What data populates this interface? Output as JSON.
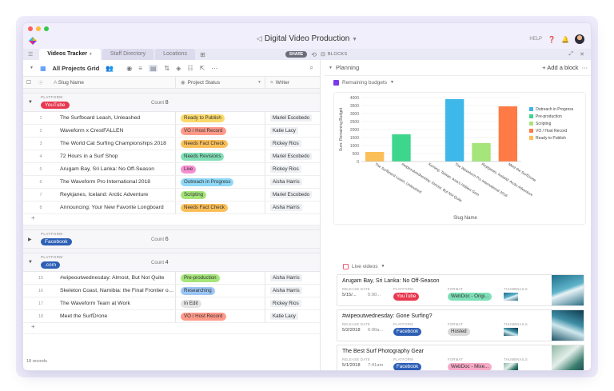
{
  "window": {
    "title": "Digital Video Production",
    "help_label": "HELP"
  },
  "tabs": [
    {
      "label": "Videos Tracker"
    },
    {
      "label": "Staff Directory"
    },
    {
      "label": "Locations"
    }
  ],
  "share_label": "SHARE",
  "blocks_label": "BLOCKS",
  "toolbar": {
    "view_name": "All Projects Grid"
  },
  "columns": {
    "name": "Slug Name",
    "status": "Project Status",
    "writer": "Writer"
  },
  "groups": [
    {
      "label": "PLATFORM",
      "name": "YouTube",
      "color": "#e8384f",
      "count_label": "Count",
      "count": "8",
      "rows": [
        {
          "n": "1",
          "name": "The Surfboard Leash, Unleashed",
          "status": "Ready to Publish",
          "status_color": "#fbd96a",
          "writer": "Mariel Escobedo"
        },
        {
          "n": "2",
          "name": "Waveform x CrestFALLEN",
          "status": "VO / Host Record",
          "status_color": "#ff9a8a",
          "writer": "Katie Lacy"
        },
        {
          "n": "3",
          "name": "The World Cat Surfing Championships 2018",
          "status": "Needs Fact Check",
          "status_color": "#fbbf5a",
          "writer": "Rickey Rios"
        },
        {
          "n": "4",
          "name": "72 Hours in a Surf Shop",
          "status": "Needs Revisions",
          "status_color": "#82dfb8",
          "writer": "Mariel Escobedo"
        },
        {
          "n": "5",
          "name": "Arugam Bay, Sri Lanka: No Off-Season",
          "status": "Live",
          "status_color": "#f78fd1",
          "writer": "Rickey Rios"
        },
        {
          "n": "6",
          "name": "The Waveform Pro International 2018",
          "status": "Outreach in Progress",
          "status_color": "#8fd8f7",
          "writer": "Aisha Harris"
        },
        {
          "n": "7",
          "name": "Reykjanes, Iceland: Arctic Adventure",
          "status": "Scripting",
          "status_color": "#a5e57a",
          "writer": "Mariel Escobedo"
        },
        {
          "n": "8",
          "name": "Announcing: Your New Favorite Longboard",
          "status": "Needs Fact Check",
          "status_color": "#fbbf5a",
          "writer": "Aisha Harris"
        }
      ]
    },
    {
      "label": "PLATFORM",
      "name": "Facebook",
      "color": "#2d5fb5",
      "count_label": "Count",
      "count": "6",
      "rows": []
    },
    {
      "label": "PLATFORM",
      "name": ".com",
      "color": "#2d5fb5",
      "count_label": "Count",
      "count": "4",
      "rows": [
        {
          "n": "15",
          "name": "#wipeoutwednesday: Almost, But Not Quite",
          "status": "Pre-production",
          "status_color": "#a5e57a",
          "writer": "Aisha Harris"
        },
        {
          "n": "16",
          "name": "Skeleton Coast, Namibia: the Final Frontier of ...",
          "status": "Researching",
          "status_color": "#9cc6f5",
          "writer": "Aisha Harris"
        },
        {
          "n": "17",
          "name": "The Waveform Team at Work",
          "status": "In Edit",
          "status_color": "#e4e4e4",
          "writer": "Rickey Rios"
        },
        {
          "n": "18",
          "name": "Meet the SurfDrone",
          "status": "VO / Host Record",
          "status_color": "#ff9a8a",
          "writer": "Katie Lacy"
        }
      ]
    }
  ],
  "records_label": "18 records",
  "right": {
    "planning_label": "Planning",
    "add_block_label": "+ Add a block",
    "chart_block_title": "Remaining budgets",
    "live_block_title": "Live videos"
  },
  "chart_data": {
    "type": "bar",
    "title": "",
    "xlabel": "Slug Name",
    "ylabel": "Sum: Remaining Budget",
    "ylim": [
      0,
      4000
    ],
    "yticks": [
      0,
      500,
      1000,
      1500,
      2000,
      2500,
      3000,
      3500,
      4000
    ],
    "categories": [
      "The Surfboard Leash, Unleashed",
      "#wipeoutwednesday: Almost, But Not Quite",
      "Kerning, Taiwan: Asia's Hidden Gem",
      "The Waveform Pro International 2018",
      "Reykjanes, Iceland: Arctic Adventure",
      "Meet the SurfDrone"
    ],
    "values": [
      600,
      1700,
      0,
      3900,
      1150,
      3450
    ],
    "colors": [
      "#fbbf5a",
      "#3dd68c",
      "#a5e57a",
      "#3db8e8",
      "#a5e57a",
      "#ff7a45"
    ],
    "legend": [
      {
        "name": "Outreach in Progress",
        "color": "#3db8e8"
      },
      {
        "name": "Pre-production",
        "color": "#3dd68c"
      },
      {
        "name": "Scripting",
        "color": "#a5e57a"
      },
      {
        "name": "VO / Host Record",
        "color": "#ff7a45"
      },
      {
        "name": "Ready to Publish",
        "color": "#fbbf5a"
      }
    ],
    "legend_position": "right"
  },
  "live_videos": {
    "labels": {
      "date": "RELEASE DATE",
      "platform": "PLATFORM",
      "format": "FORMAT",
      "thumbs": "THUMBNAILS"
    },
    "cards": [
      {
        "title": "Arugam Bay, Sri Lanka: No Off-Season",
        "date": "5/15/...",
        "time": "5:00...",
        "platform": "YouTube",
        "platform_color": "#e8384f",
        "format": "WebDoc - Origi...",
        "format_color": "#7ee0b8"
      },
      {
        "title": "#wipeoutwednesday: Gone Surfing?",
        "date": "5/2/2018",
        "time": "6:00a...",
        "platform": "Facebook",
        "platform_color": "#2d5fb5",
        "format": "Hosted",
        "format_color": "#d9d9d9"
      },
      {
        "title": "The Best Surf Photography Gear",
        "date": "5/1/2018",
        "time": "7:41am",
        "platform": "Facebook",
        "platform_color": "#2d5fb5",
        "format": "WebDoc - Mixe...",
        "format_color": "#f7a9c6"
      }
    ]
  }
}
